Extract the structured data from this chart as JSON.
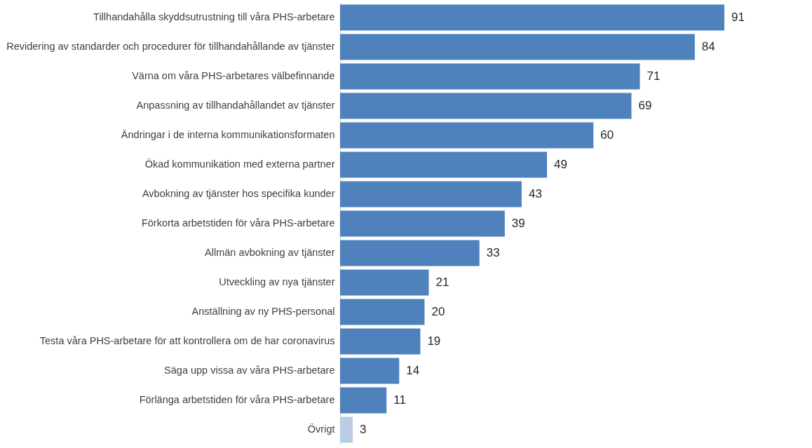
{
  "chart_data": {
    "type": "bar",
    "orientation": "horizontal",
    "data_labels": true,
    "categories": [
      "Tillhandahålla skyddsutrustning till våra PHS-arbetare",
      "Revidering av standarder och procedurer för tillhandahållande av tjänster",
      "Värna om våra PHS-arbetares välbefinnande",
      "Anpassning av tillhandahållandet av tjänster",
      "Ändringar i de interna kommunikationsformaten",
      "Ökad kommunikation med externa partner",
      "Avbokning av tjänster hos specifika kunder",
      "Förkorta arbetstiden för våra PHS-arbetare",
      "Allmän avbokning av tjänster",
      "Utveckling av nya tjänster",
      "Anställning av ny PHS-personal",
      "Testa våra PHS-arbetare för att kontrollera om de har coronavirus",
      "Säga upp vissa av våra PHS-arbetare",
      "Förlänga arbetstiden för våra PHS-arbetare",
      "Övrigt"
    ],
    "values": [
      91,
      84,
      71,
      69,
      60,
      49,
      43,
      39,
      33,
      21,
      20,
      19,
      14,
      11,
      3
    ],
    "colors": [
      "#4f81bd",
      "#4f81bd",
      "#4f81bd",
      "#4f81bd",
      "#4f81bd",
      "#4f81bd",
      "#4f81bd",
      "#4f81bd",
      "#4f81bd",
      "#4f81bd",
      "#4f81bd",
      "#4f81bd",
      "#4f81bd",
      "#4f81bd",
      "#b9cde5"
    ]
  }
}
